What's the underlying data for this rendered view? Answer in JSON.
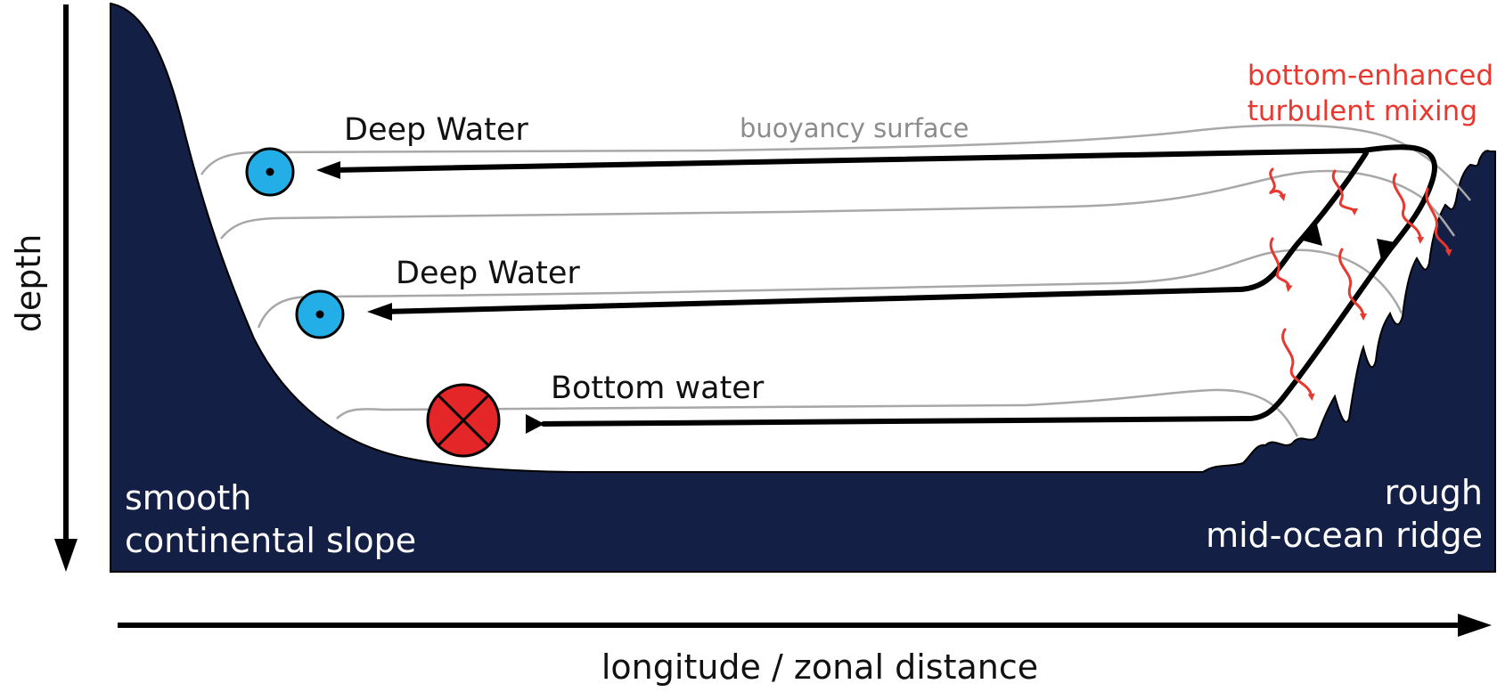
{
  "axes": {
    "y_label": "depth",
    "x_label": "longitude / zonal distance"
  },
  "labels": {
    "upper_deep_water": "Deep Water",
    "lower_deep_water": "Deep Water",
    "bottom_water": "Bottom water",
    "buoyancy_surface": "buoyancy surface",
    "mixing_line1": "bottom-enhanced",
    "mixing_line2": "turbulent mixing",
    "left_boundary_line1": "smooth",
    "left_boundary_line2": "continental slope",
    "right_boundary_line1": "rough",
    "right_boundary_line2": "mid-ocean ridge"
  },
  "symbols": {
    "out_of_page": "flow-out-of-page-symbol",
    "into_page": "flow-into-page-symbol"
  },
  "colors": {
    "seafloor": "#131f45",
    "flow_line": "#000000",
    "isopycnal": "#a8a8a8",
    "mixing": "#e8382f",
    "out_of_page_fill": "#23aee8",
    "into_page_fill": "#e52628"
  }
}
